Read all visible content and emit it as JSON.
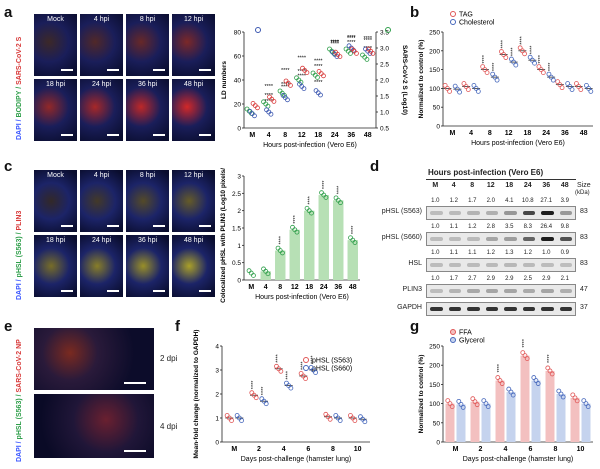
{
  "panels": {
    "a": "a",
    "b": "b",
    "c": "c",
    "d": "d",
    "e": "e",
    "f": "f",
    "g": "g"
  },
  "a": {
    "row1": [
      "Mock",
      "4 hpi",
      "8 hpi",
      "12 hpi"
    ],
    "row2": [
      "18 hpi",
      "24 hpi",
      "36 hpi",
      "48 hpi"
    ],
    "side_label": "DAPI / BODIPY / SARS-CoV-2 S"
  },
  "c": {
    "row1": [
      "Mock",
      "4 hpi",
      "8 hpi",
      "12 hpi"
    ],
    "row2": [
      "18 hpi",
      "24 hpi",
      "36 hpi",
      "48 hpi"
    ],
    "side_label": "DAPI / pHSL (S563) / PLIN3"
  },
  "e": {
    "rows": [
      "2 dpi",
      "4 dpi"
    ],
    "side_label": "DAPI / pHSL (S563) / SARS-CoV-2 NP"
  },
  "d": {
    "title": "Hours post-infection (Vero E6)",
    "lanes": [
      "M",
      "4",
      "8",
      "12",
      "18",
      "24",
      "36",
      "48"
    ],
    "size_label": "Size",
    "size_unit": "(kDa)",
    "blots": [
      {
        "name": "pHSL (S563)",
        "vals": [
          "1.0",
          "1.2",
          "1.7",
          "2.0",
          "4.1",
          "10.8",
          "27.1",
          "3.9"
        ],
        "size": "83"
      },
      {
        "name": "pHSL (S660)",
        "vals": [
          "1.0",
          "1.1",
          "1.2",
          "2.8",
          "3.5",
          "8.3",
          "26.4",
          "9.8"
        ],
        "size": "83"
      },
      {
        "name": "HSL",
        "vals": [
          "1.0",
          "1.1",
          "1.1",
          "1.2",
          "1.3",
          "1.2",
          "1.0",
          "0.9"
        ],
        "size": "83"
      },
      {
        "name": "PLIN3",
        "vals": [
          "1.0",
          "1.7",
          "2.7",
          "2.9",
          "2.9",
          "2.5",
          "2.9",
          "2.1"
        ],
        "size": "47"
      },
      {
        "name": "GAPDH",
        "vals": [],
        "size": "37"
      }
    ]
  },
  "chart_data": [
    {
      "id": "a-chart",
      "type": "line",
      "categories": [
        "M",
        "4",
        "8",
        "12",
        "18",
        "24",
        "36",
        "48"
      ],
      "xlabel": "Hours post-infection (Vero E6)",
      "ylabel": "LD numbers",
      "y2label": "SARS-CoV-2 S (Log10)",
      "ylim": [
        0,
        80
      ],
      "y2lim": [
        0.5,
        3.5
      ],
      "series": [
        {
          "name": "",
          "values": [
            14,
            20,
            29,
            40,
            44,
            64,
            64,
            59
          ],
          "color": "#2e9e4a"
        },
        {
          "name": "",
          "values": [
            0.95,
            1.0,
            1.45,
            1.8,
            1.6,
            2.8,
            3.0,
            2.9
          ],
          "color": "#3a56b0"
        },
        {
          "name": "",
          "values": [
            1.2,
            1.4,
            1.9,
            2.3,
            2.2,
            2.8,
            2.9,
            2.9
          ],
          "color": "#d83a3a"
        }
      ]
    },
    {
      "id": "b-chart",
      "type": "scatter",
      "categories": [
        "M",
        "4",
        "8",
        "12",
        "18",
        "24",
        "36",
        "48"
      ],
      "xlabel": "Hours post-infection (Vero E6)",
      "ylabel": "Normalized to control (%)",
      "ylim": [
        0,
        250
      ],
      "series": [
        {
          "name": "TAG",
          "values": [
            100,
            105,
            150,
            190,
            200,
            150,
            110,
            105
          ],
          "color": "#e05555"
        },
        {
          "name": "Cholesterol",
          "values": [
            98,
            100,
            130,
            170,
            175,
            130,
            105,
            100
          ],
          "color": "#4466bb"
        }
      ]
    },
    {
      "id": "c-chart",
      "type": "bar",
      "categories": [
        "M",
        "4",
        "8",
        "12",
        "18",
        "24",
        "36",
        "48"
      ],
      "xlabel": "Hours post-infection (Vero E6)",
      "ylabel": "Colocalized pHSL with PLIN3 (Log10 pixels/nPP)",
      "ylim": [
        0,
        3.0
      ],
      "values": [
        0.2,
        0.25,
        0.85,
        1.45,
        2.0,
        2.45,
        2.3,
        1.15
      ],
      "color": "#b7e0b5"
    },
    {
      "id": "f-chart",
      "type": "scatter",
      "categories": [
        "M",
        "2",
        "4",
        "6",
        "8",
        "10"
      ],
      "xlabel": "Days post-challenge (hamster lung)",
      "ylabel": "Mean-fold change (normalized to GAPDH)",
      "ylim": [
        0,
        4
      ],
      "series": [
        {
          "name": "pHSL (S563)",
          "values": [
            1.0,
            1.95,
            3.05,
            2.75,
            1.05,
            1.0
          ],
          "color": "#e05555"
        },
        {
          "name": "pHSL (S660)",
          "values": [
            1.0,
            1.7,
            2.35,
            3.0,
            1.0,
            0.95
          ],
          "color": "#4466bb"
        }
      ]
    },
    {
      "id": "g-chart",
      "type": "bar",
      "categories": [
        "M",
        "2",
        "4",
        "6",
        "8",
        "10"
      ],
      "xlabel": "Days post-challenge (hamster lung)",
      "ylabel": "Normalized to control (%)",
      "ylim": [
        0,
        250
      ],
      "series": [
        {
          "name": "FFA",
          "values": [
            100,
            105,
            160,
            225,
            185,
            115
          ],
          "color": "#f3c0c0"
        },
        {
          "name": "Glycerol",
          "values": [
            98,
            100,
            130,
            160,
            125,
            100
          ],
          "color": "#c5d3ee"
        }
      ]
    }
  ],
  "stars": "****"
}
